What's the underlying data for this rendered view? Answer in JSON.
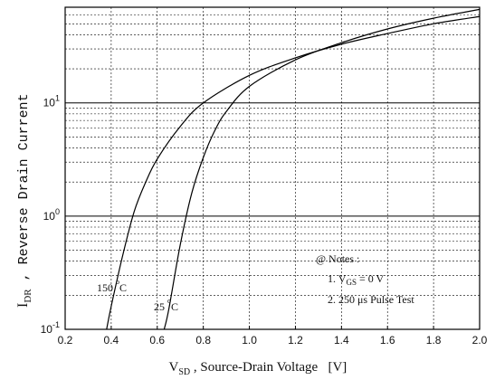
{
  "chart_data": {
    "type": "line",
    "xlabel": {
      "main": "V",
      "sub": "SD",
      "rest": " , Source-Drain Voltage   [V]"
    },
    "ylabel": {
      "main": "I",
      "sub": "DR",
      "rest": " , Reverse Drain Current"
    },
    "xlim": [
      0.2,
      2.0
    ],
    "ylim": [
      0.1,
      70
    ],
    "y_scale": "log",
    "x_ticks": [
      0.2,
      0.4,
      0.6,
      0.8,
      1.0,
      1.2,
      1.4,
      1.6,
      1.8,
      2.0
    ],
    "x_tick_labels": [
      "0.2",
      "0.4",
      "0.6",
      "0.8",
      "1.0",
      "1.2",
      "1.4",
      "1.6",
      "1.8",
      "2.0"
    ],
    "y_ticks": [
      {
        "value": 0.1,
        "base": "10",
        "exp": "-1"
      },
      {
        "value": 1,
        "base": "10",
        "exp": "0"
      },
      {
        "value": 10,
        "base": "10",
        "exp": "1"
      }
    ],
    "grid": true,
    "series": [
      {
        "name": "150 °C",
        "label_main": "150",
        "label_deg": "o",
        "label_unit": "C",
        "x": [
          0.38,
          0.4,
          0.45,
          0.5,
          0.55,
          0.6,
          0.7,
          0.8,
          1.0,
          1.2,
          1.4,
          1.6,
          1.8,
          2.0
        ],
        "y": [
          0.1,
          0.16,
          0.45,
          1.1,
          2.0,
          3.2,
          6.2,
          10.0,
          17.5,
          25.0,
          33.0,
          41.0,
          50.0,
          58.0
        ]
      },
      {
        "name": "25 °C",
        "label_main": "25",
        "label_deg": "o",
        "label_unit": "C",
        "x": [
          0.63,
          0.65,
          0.7,
          0.75,
          0.8,
          0.85,
          0.9,
          1.0,
          1.2,
          1.4,
          1.6,
          1.8,
          2.0
        ],
        "y": [
          0.1,
          0.15,
          0.56,
          1.6,
          3.3,
          5.7,
          8.4,
          14.0,
          24.0,
          34.0,
          45.0,
          56.0,
          67.0
        ]
      }
    ]
  },
  "notes": {
    "title": "@ Notes :",
    "line1": {
      "prefix": "1. V",
      "sub": "GS",
      "suffix": " = 0 V"
    },
    "line2": "2. 250 μs Pulse Test"
  }
}
